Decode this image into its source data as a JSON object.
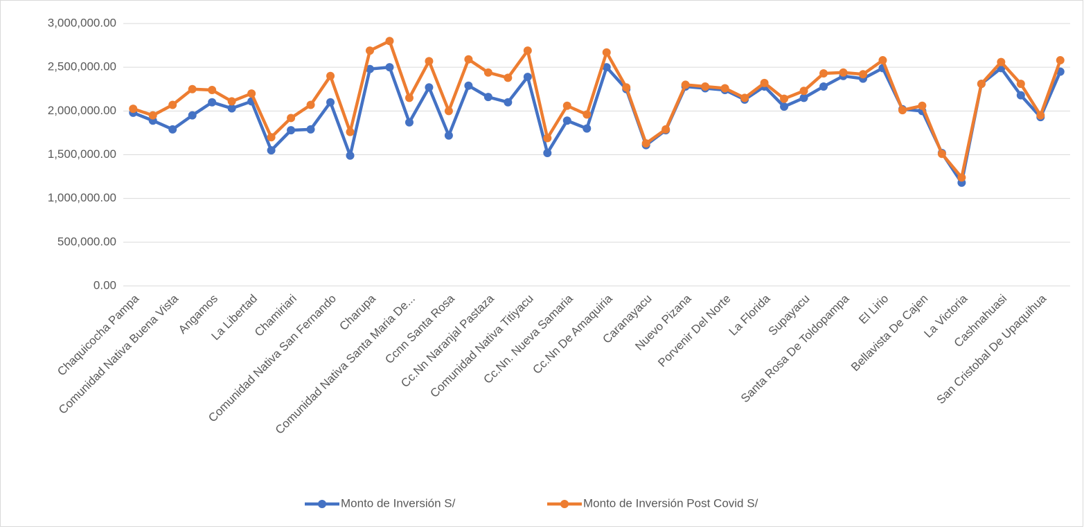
{
  "chart_data": {
    "type": "line",
    "categories": [
      "Chaquicocha Pampa",
      null,
      "Comunidad Nativa Buena Vista",
      null,
      "Angamos",
      null,
      "La Libertad",
      null,
      "Chamiriari",
      null,
      "Comunidad Nativa San Fernando",
      null,
      "Charupa",
      null,
      "Comunidad Nativa Santa Maria De...",
      null,
      "Ccnn Santa Rosa",
      null,
      "Cc.Nn Naranjal Pastaza",
      null,
      "Comunidad Nativa Titiyacu",
      null,
      "Cc.Nn. Nueva Samaria",
      null,
      "Cc.Nn De Amaquiria",
      null,
      "Caranayacu",
      null,
      "Nuevo Pizana",
      null,
      "Porvenir Del Norte",
      null,
      "La Florida",
      null,
      "Supayacu",
      null,
      "Santa Rosa De Toldopampa",
      null,
      "El Lirio",
      null,
      "Bellavista De Cajen",
      null,
      "La Victoria",
      null,
      "Cashnahuasi",
      null,
      "San Cristobal De Upaquihua",
      null
    ],
    "series": [
      {
        "name": "Monto de Inversión S/",
        "color": "#4472c4",
        "values": [
          1980000,
          1890000,
          1790000,
          1950000,
          2100000,
          2030000,
          2110000,
          1550000,
          1780000,
          1790000,
          2100000,
          1490000,
          2480000,
          2500000,
          1870000,
          2270000,
          1720000,
          2290000,
          2160000,
          2100000,
          2390000,
          1520000,
          1890000,
          1800000,
          2500000,
          2250000,
          1610000,
          1780000,
          2280000,
          2260000,
          2240000,
          2130000,
          2280000,
          2050000,
          2150000,
          2280000,
          2400000,
          2370000,
          2490000,
          2020000,
          2000000,
          1520000,
          1180000,
          2310000,
          2490000,
          2180000,
          1930000,
          2450000
        ]
      },
      {
        "name": "Monto de Inversión  Post Covid S/",
        "color": "#ed7d31",
        "values": [
          2025000,
          1950000,
          2070000,
          2250000,
          2240000,
          2110000,
          2200000,
          1700000,
          1920000,
          2070000,
          2400000,
          1760000,
          2690000,
          2800000,
          2150000,
          2570000,
          2000000,
          2590000,
          2440000,
          2380000,
          2690000,
          1690000,
          2060000,
          1960000,
          2670000,
          2270000,
          1630000,
          1790000,
          2300000,
          2280000,
          2260000,
          2150000,
          2320000,
          2140000,
          2230000,
          2430000,
          2440000,
          2420000,
          2580000,
          2010000,
          2060000,
          1510000,
          1240000,
          2310000,
          2560000,
          2310000,
          1950000,
          2580000
        ]
      }
    ],
    "ylim": [
      0,
      3000000
    ],
    "yticks": [
      {
        "value": 0,
        "label": "0.00"
      },
      {
        "value": 500000,
        "label": "500,000.00"
      },
      {
        "value": 1000000,
        "label": "1,000,000.00"
      },
      {
        "value": 1500000,
        "label": "1,500,000.00"
      },
      {
        "value": 2000000,
        "label": "2,000,000.00"
      },
      {
        "value": 2500000,
        "label": "2,500,000.00"
      },
      {
        "value": 3000000,
        "label": "3,000,000.00"
      }
    ],
    "grid": true,
    "legend": "bottom"
  }
}
